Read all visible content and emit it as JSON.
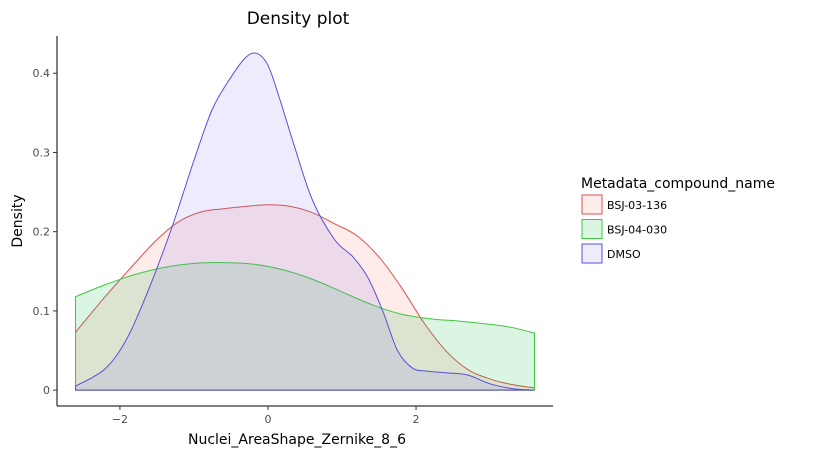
{
  "chart_data": {
    "type": "area",
    "title": "Density plot",
    "xlabel": "Nuclei_AreaShape_Zernike_8_6",
    "ylabel": "Density",
    "xlim": [
      -2.85,
      3.85
    ],
    "ylim": [
      -0.02,
      0.447
    ],
    "xticks": [
      -2,
      0,
      2
    ],
    "xtick_labels": [
      "−2",
      "0",
      "2"
    ],
    "yticks": [
      0,
      0.1,
      0.2,
      0.3,
      0.4
    ],
    "ytick_labels": [
      "0",
      "0.1",
      "0.2",
      "0.3",
      "0.4"
    ],
    "grid": false,
    "legend": {
      "title": "Metadata_compound_name",
      "position": "right"
    },
    "series": [
      {
        "name": "BSJ-03-136",
        "line_color": "#d9534f",
        "fill_color": "#f8766d",
        "x": [
          -2.6,
          -2.2,
          -1.8,
          -1.5,
          -1.2,
          -0.9,
          -0.6,
          -0.3,
          0,
          0.3,
          0.6,
          0.9,
          1.2,
          1.5,
          1.8,
          2.1,
          2.4,
          2.7,
          3.0,
          3.3,
          3.6
        ],
        "y": [
          0.073,
          0.118,
          0.16,
          0.19,
          0.213,
          0.225,
          0.229,
          0.232,
          0.234,
          0.232,
          0.224,
          0.21,
          0.195,
          0.168,
          0.13,
          0.086,
          0.05,
          0.026,
          0.014,
          0.007,
          0.003
        ]
      },
      {
        "name": "BSJ-04-030",
        "line_color": "#3fc73f",
        "fill_color": "#00ba38",
        "x": [
          -2.6,
          -2.2,
          -1.8,
          -1.4,
          -1.0,
          -0.6,
          -0.2,
          0.2,
          0.6,
          1.0,
          1.4,
          1.8,
          2.2,
          2.6,
          3.0,
          3.3,
          3.6
        ],
        "y": [
          0.118,
          0.133,
          0.146,
          0.155,
          0.16,
          0.161,
          0.159,
          0.152,
          0.14,
          0.124,
          0.108,
          0.096,
          0.09,
          0.087,
          0.083,
          0.079,
          0.072
        ]
      },
      {
        "name": "DMSO",
        "line_color": "#5a4fd6",
        "fill_color": "#7c72e8",
        "x": [
          -2.6,
          -2.2,
          -1.9,
          -1.6,
          -1.3,
          -1.0,
          -0.75,
          -0.5,
          -0.3,
          -0.15,
          0,
          0.15,
          0.35,
          0.6,
          0.9,
          1.15,
          1.35,
          1.55,
          1.75,
          1.95,
          2.15,
          2.4,
          2.7,
          3.0,
          3.3,
          3.6
        ],
        "y": [
          0.005,
          0.027,
          0.066,
          0.13,
          0.205,
          0.29,
          0.355,
          0.395,
          0.42,
          0.425,
          0.41,
          0.37,
          0.31,
          0.24,
          0.19,
          0.168,
          0.142,
          0.1,
          0.05,
          0.028,
          0.024,
          0.022,
          0.019,
          0.008,
          0.002,
          0
        ]
      }
    ]
  }
}
